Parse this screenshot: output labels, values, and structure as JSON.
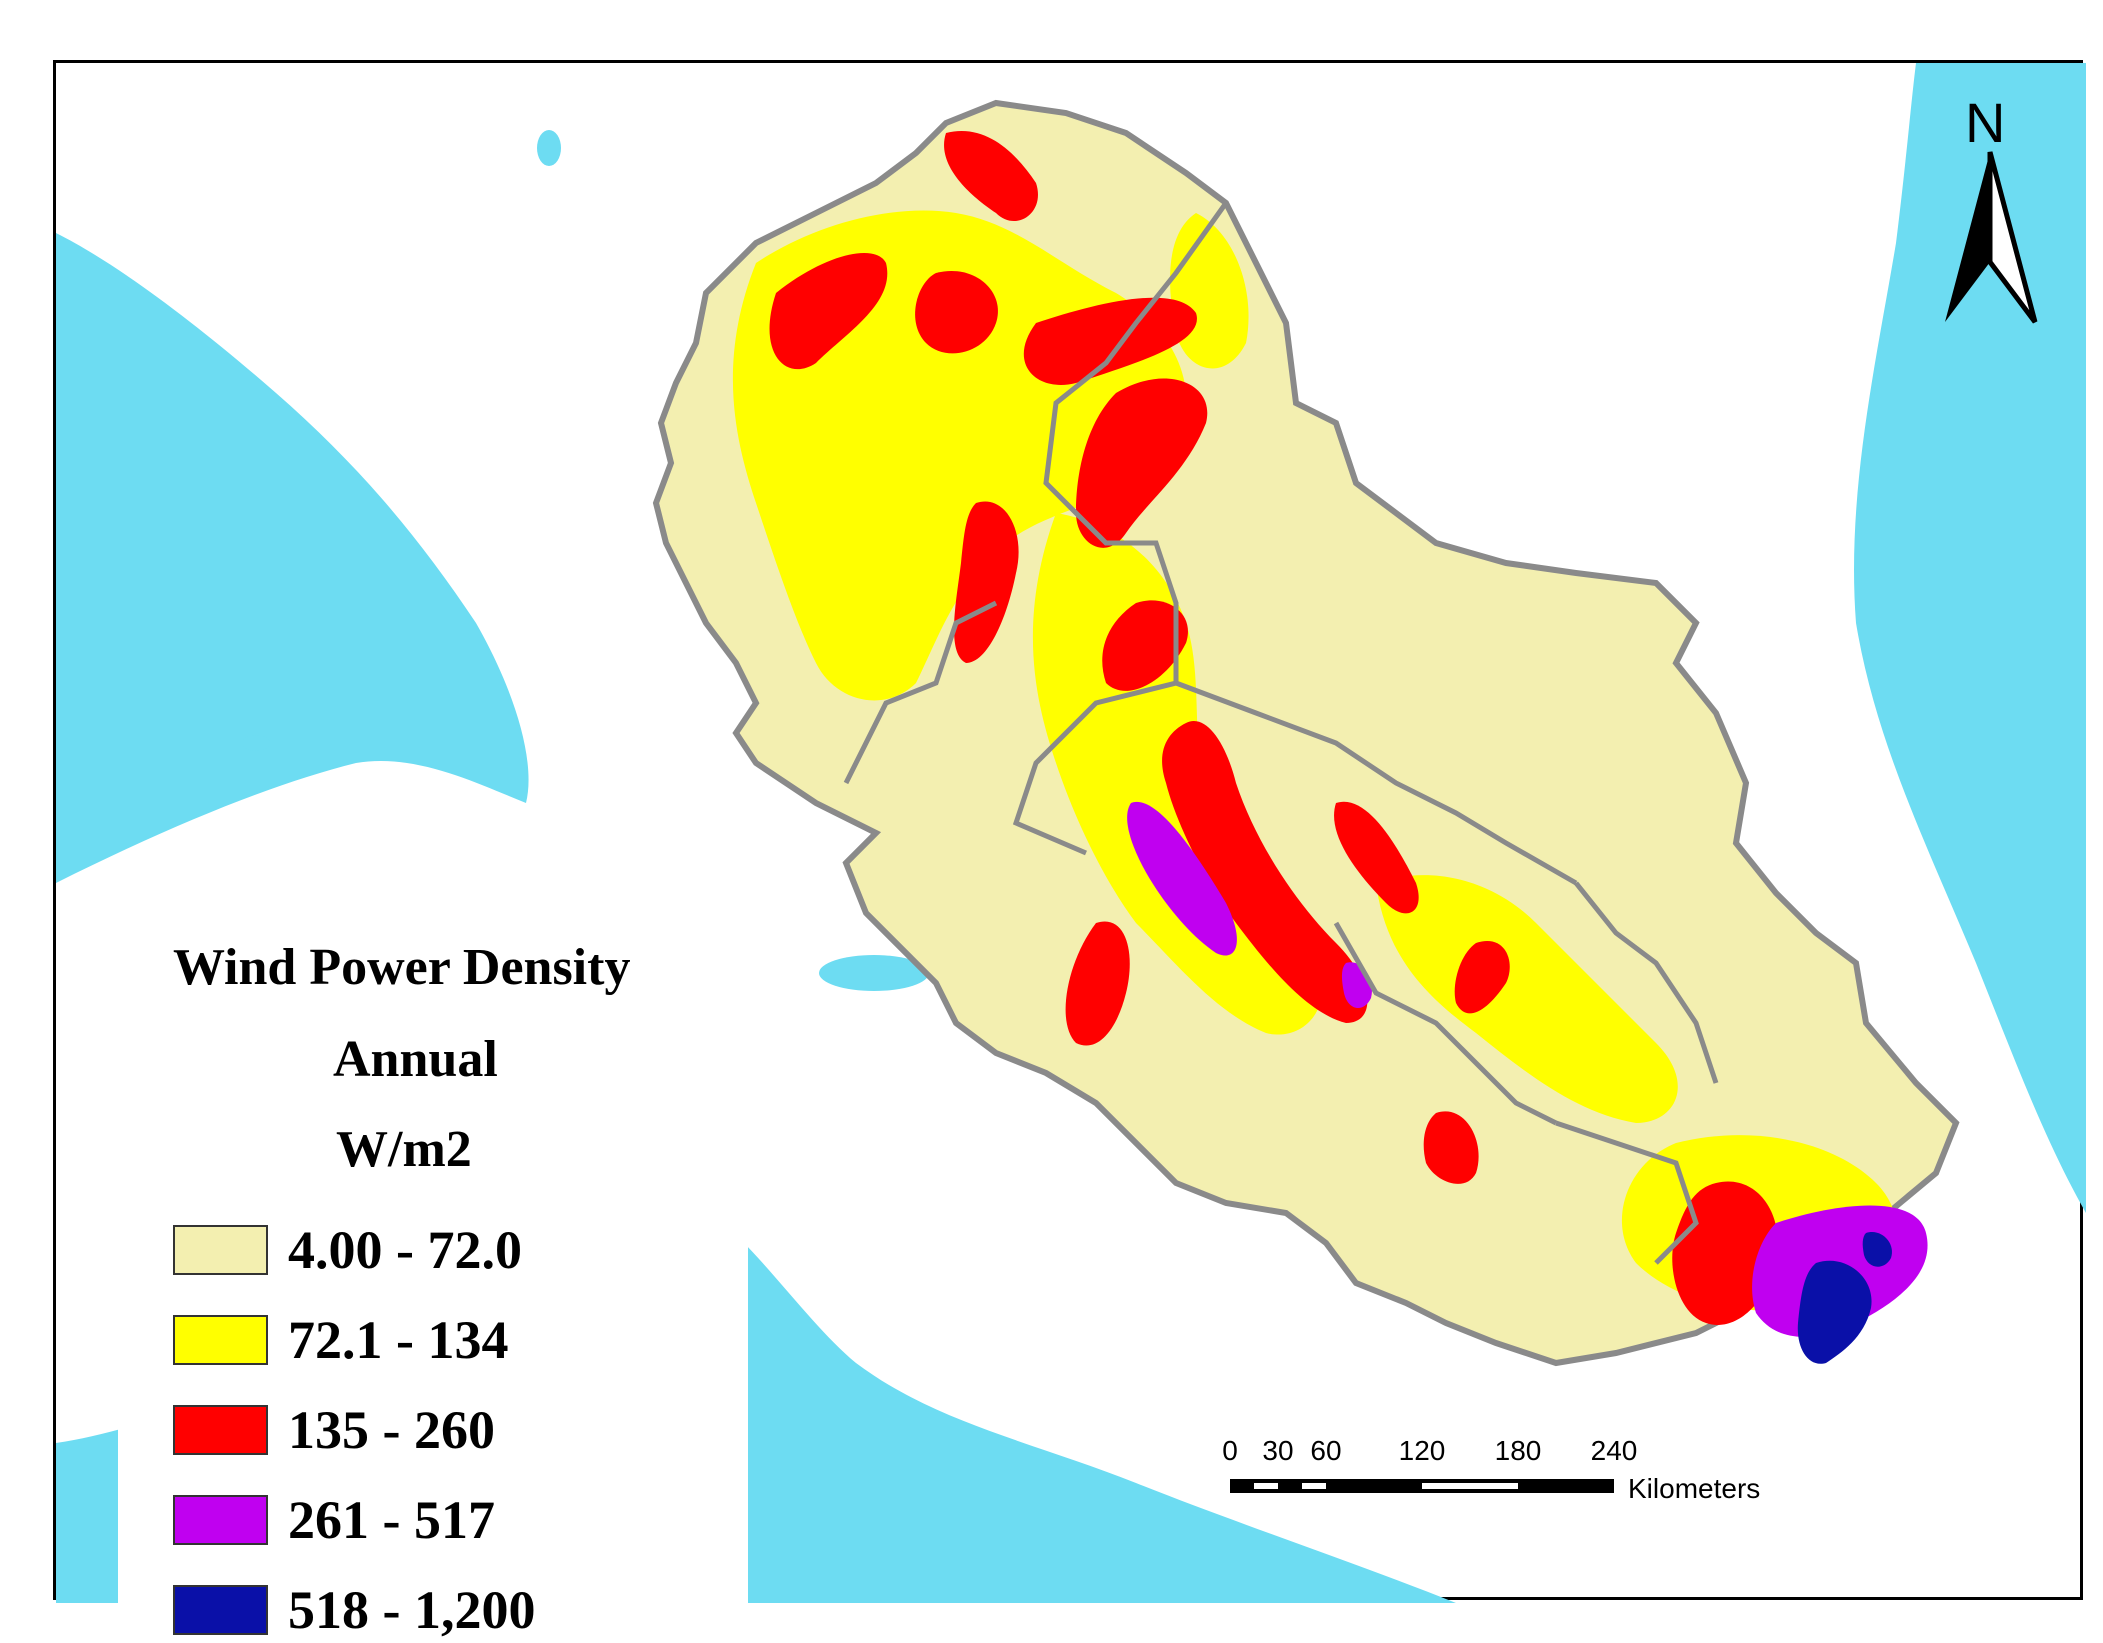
{
  "legend": {
    "title": "Wind Power Density",
    "subtitle": "Annual",
    "unit": "W/m2",
    "classes": [
      {
        "label": "4.00 - 72.0",
        "color": "#f3efb0"
      },
      {
        "label": "72.1 - 134",
        "color": "#ffff00"
      },
      {
        "label": "135 - 260",
        "color": "#ff0000"
      },
      {
        "label": "261 - 517",
        "color": "#c000f0"
      },
      {
        "label": "518 - 1,200",
        "color": "#0a10a8"
      }
    ]
  },
  "north_arrow": {
    "label": "N"
  },
  "scale_bar": {
    "ticks": [
      "0",
      "30",
      "60",
      "120",
      "180",
      "240"
    ],
    "unit": "Kilometers"
  },
  "colors": {
    "ocean": "#6ddcf2",
    "land": "#ffffff",
    "boundary": "#8a8a8a"
  }
}
